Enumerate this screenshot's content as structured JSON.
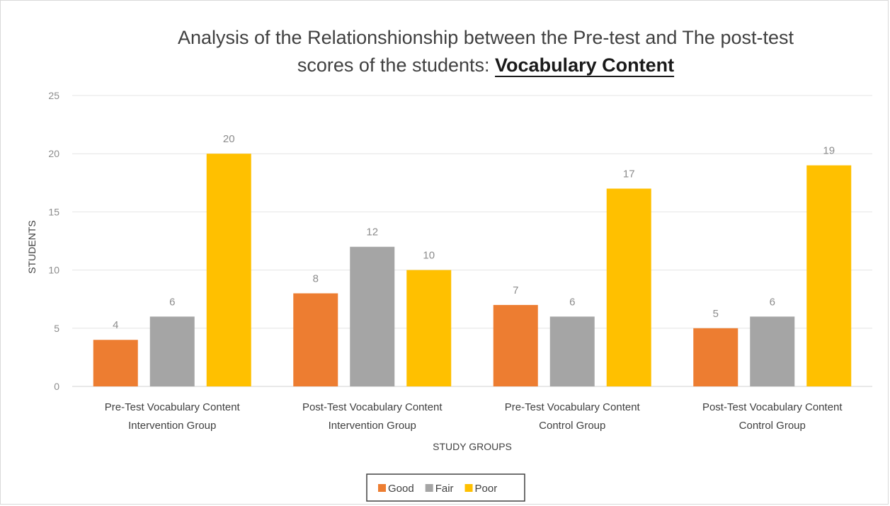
{
  "chart_data": {
    "type": "bar",
    "title_line1": "Analysis of the Relationshionship  between the Pre-test and The post-test",
    "title_line2_prefix": "scores of the students: ",
    "title_line2_emphasis": "Vocabulary Content",
    "xlabel": "STUDY GROUPS",
    "ylabel": "STUDENTS",
    "ylim": [
      0,
      25
    ],
    "yticks": [
      0,
      5,
      10,
      15,
      20,
      25
    ],
    "grid": true,
    "legend_position": "bottom",
    "categories": [
      [
        "Pre-Test Vocabulary Content",
        "Intervention Group"
      ],
      [
        "Post-Test Vocabulary Content",
        "Intervention Group"
      ],
      [
        "Pre-Test Vocabulary Content",
        "Control  Group"
      ],
      [
        "Post-Test Vocabulary Content",
        "Control Group"
      ]
    ],
    "series": [
      {
        "name": "Good",
        "color": "#ED7D31",
        "values": [
          4,
          8,
          7,
          5
        ]
      },
      {
        "name": "Fair",
        "color": "#A5A5A5",
        "values": [
          6,
          12,
          6,
          6
        ]
      },
      {
        "name": "Poor",
        "color": "#FFC000",
        "values": [
          20,
          10,
          17,
          19
        ]
      }
    ]
  }
}
